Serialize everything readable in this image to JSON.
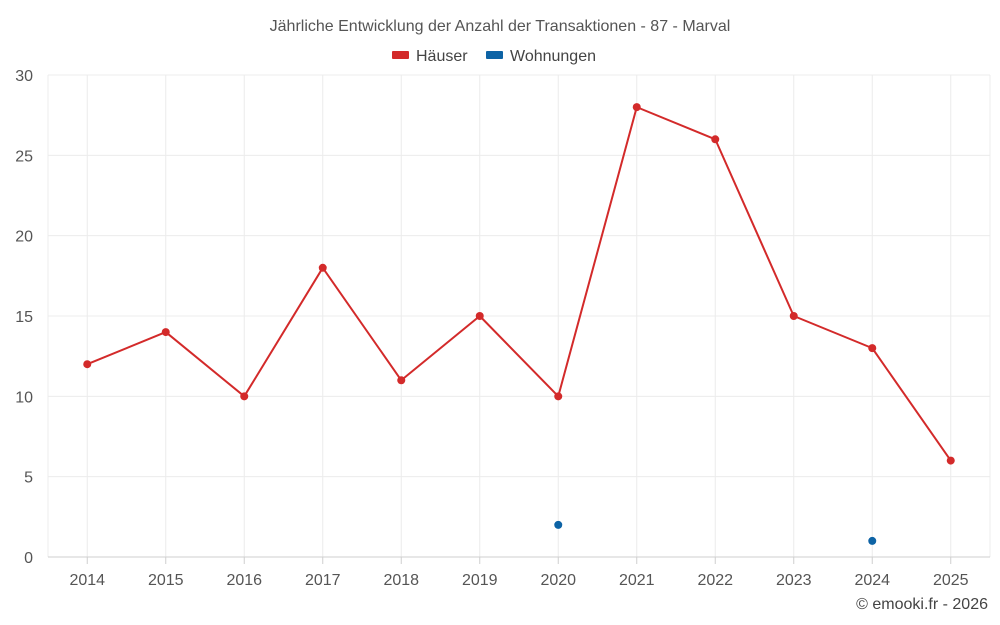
{
  "chart_data": {
    "type": "line",
    "title": "Jährliche Entwicklung der Anzahl der Transaktionen - 87 - Marval",
    "categories": [
      "2014",
      "2015",
      "2016",
      "2017",
      "2018",
      "2019",
      "2020",
      "2021",
      "2022",
      "2023",
      "2024",
      "2025"
    ],
    "series": [
      {
        "name": "Häuser",
        "color": "#d32a2a",
        "values": [
          12,
          14,
          10,
          18,
          11,
          15,
          10,
          28,
          26,
          15,
          13,
          6
        ]
      },
      {
        "name": "Wohnungen",
        "color": "#0d63a5",
        "values": [
          null,
          null,
          null,
          null,
          null,
          null,
          2,
          null,
          null,
          null,
          1,
          null
        ]
      }
    ],
    "ylim": [
      0,
      30
    ],
    "yticks": [
      "0",
      "5",
      "10",
      "15",
      "20",
      "25",
      "30"
    ],
    "xlabel": "",
    "ylabel": "",
    "grid": true,
    "legend_position": "top-center"
  },
  "credit": "© emooki.fr - 2026"
}
